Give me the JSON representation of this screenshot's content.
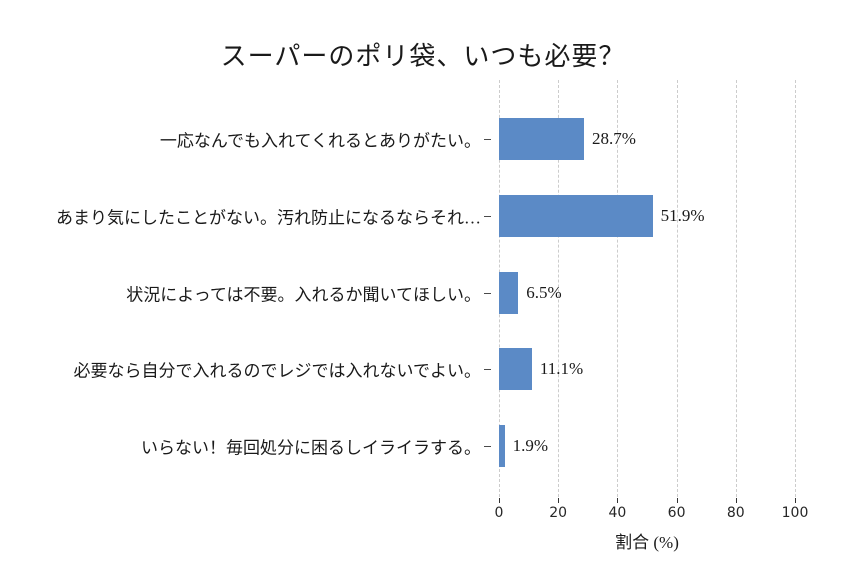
{
  "chart_data": {
    "type": "bar",
    "orientation": "horizontal",
    "title": "スーパーのポリ袋、いつも必要？",
    "categories": [
      "一応なんでも入れてくれるとありがたい。",
      "あまり気にしたことがない。汚れ防止になるならそれ…",
      "状況によっては不要。入れるか聞いてほしい。",
      "必要なら自分で入れるのでレジでは入れないでよい。",
      "いらない！毎回処分に困るしイライラする。"
    ],
    "values": [
      28.7,
      51.9,
      6.5,
      11.1,
      1.9
    ],
    "value_labels": [
      "28.7%",
      "51.9%",
      "6.5%",
      "11.1%",
      "1.9%"
    ],
    "xlabel": "割合 (%)",
    "xlim": [
      0,
      100
    ],
    "xticks": [
      0,
      20,
      40,
      60,
      80,
      100
    ],
    "xtick_labels": [
      "0",
      "20",
      "40",
      "60",
      "80",
      "100"
    ],
    "grid": "vertical-dashed",
    "legend": "none",
    "colors": {
      "bar": "#5b8ac6",
      "gridline": "#cccccc",
      "tick": "#333333",
      "text": "#1a1a1a",
      "background": "#ffffff"
    }
  }
}
